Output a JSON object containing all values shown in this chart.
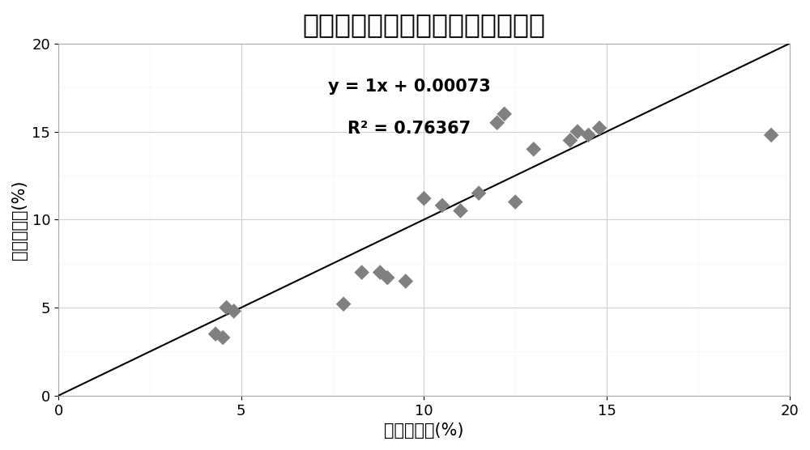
{
  "title": "反射率预测与实测孔隙度相关关系",
  "xlabel": "预测孔隙度(%)",
  "ylabel": "实测孔隙度(%)",
  "equation": "y = 1x + 0.00073",
  "r_squared": "R² = 0.76367",
  "scatter_x": [
    4.3,
    4.5,
    4.6,
    4.8,
    7.8,
    8.3,
    8.8,
    9.0,
    9.5,
    10.0,
    10.5,
    11.0,
    11.5,
    12.0,
    12.2,
    12.5,
    13.0,
    14.0,
    14.2,
    14.5,
    14.8,
    19.5
  ],
  "scatter_y": [
    3.5,
    3.3,
    5.0,
    4.8,
    5.2,
    7.0,
    7.0,
    6.7,
    6.5,
    11.2,
    10.8,
    10.5,
    11.5,
    15.5,
    16.0,
    11.0,
    14.0,
    14.5,
    15.0,
    14.8,
    15.2,
    14.8
  ],
  "line_x": [
    0,
    20
  ],
  "line_y": [
    0.00073,
    20.00073
  ],
  "xlim": [
    0,
    20
  ],
  "ylim": [
    0,
    20
  ],
  "xticks": [
    0,
    5,
    10,
    15,
    20
  ],
  "yticks": [
    0,
    5,
    10,
    15,
    20
  ],
  "marker_color": "#808080",
  "marker_size": 90,
  "line_color": "#000000",
  "background_color": "#ffffff",
  "grid_major_color": "#d0d0d0",
  "grid_minor_color": "#e8e8e8",
  "annotation_color": "#000000",
  "title_fontsize": 24,
  "label_fontsize": 15,
  "tick_fontsize": 13,
  "annotation_fontsize": 15
}
